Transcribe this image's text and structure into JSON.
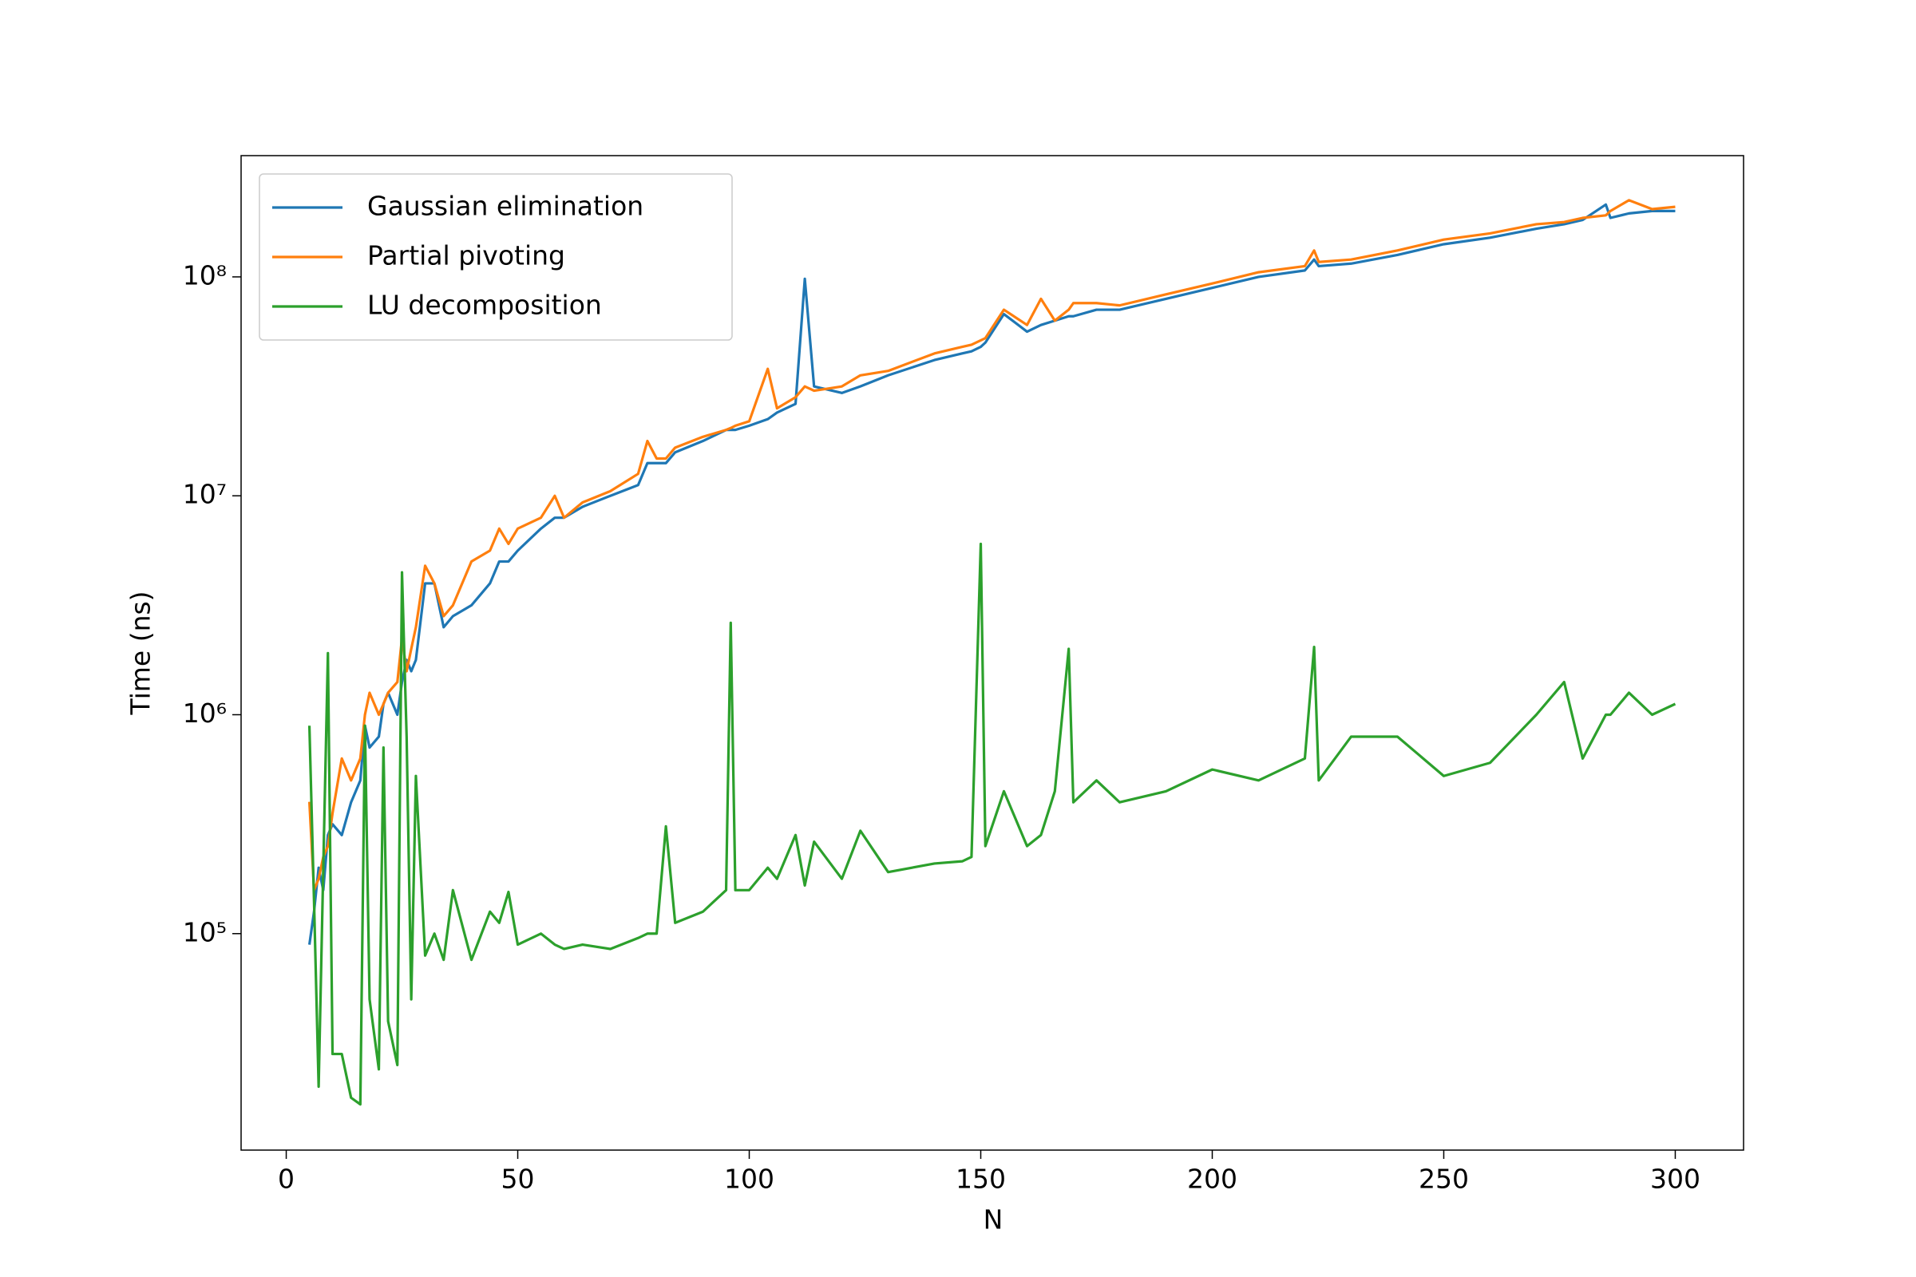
{
  "chart_data": {
    "type": "line",
    "x_label": "N",
    "y_label": "Time (ns)",
    "x": [
      5,
      6,
      7,
      8,
      9,
      10,
      12,
      14,
      16,
      17,
      18,
      20,
      21,
      22,
      24,
      25,
      26,
      27,
      28,
      30,
      32,
      34,
      36,
      40,
      44,
      46,
      48,
      50,
      55,
      58,
      60,
      64,
      70,
      76,
      78,
      80,
      82,
      84,
      90,
      95,
      96,
      97,
      100,
      104,
      106,
      110,
      112,
      114,
      120,
      124,
      130,
      140,
      146,
      148,
      150,
      151,
      155,
      160,
      163,
      166,
      169,
      170,
      175,
      180,
      190,
      200,
      210,
      220,
      222,
      223,
      230,
      240,
      250,
      260,
      270,
      276,
      280,
      285,
      286,
      290,
      295,
      300
    ],
    "series": [
      {
        "name": "Gaussian elimination",
        "color": "#1f77b4",
        "values": [
          89000,
          126000,
          200000,
          158000,
          282000,
          316000,
          282000,
          398000,
          501000,
          891000,
          708000,
          794000,
          1120000,
          1260000,
          1000000,
          1410000,
          1780000,
          1580000,
          1780000,
          3980000,
          3980000,
          2510000,
          2820000,
          3160000,
          3980000,
          5010000,
          5010000,
          5620000,
          7080000,
          7940000,
          7940000,
          8910000,
          10000000,
          11200000,
          14100000,
          14100000,
          14100000,
          15800000,
          17800000,
          20000000,
          20000000,
          20000000,
          20900000,
          22400000,
          24000000,
          26300000,
          98000000,
          31600000,
          29500000,
          31600000,
          35500000,
          41700000,
          44700000,
          45700000,
          47900000,
          50100000,
          67600000,
          56200000,
          60300000,
          63100000,
          66100000,
          66100000,
          70800000,
          70800000,
          79400000,
          89100000,
          100000000,
          107000000,
          120000000,
          112000000,
          115000000,
          126000000,
          141000000,
          151000000,
          166000000,
          174000000,
          182000000,
          214000000,
          186000000,
          195000000,
          200000000,
          200000000
        ]
      },
      {
        "name": "Partial pivoting",
        "color": "#ff7f0e",
        "values": [
          400000,
          158000,
          178000,
          224000,
          251000,
          355000,
          631000,
          501000,
          631000,
          1000000,
          1260000,
          1000000,
          1120000,
          1260000,
          1410000,
          2240000,
          1580000,
          2000000,
          2510000,
          4790000,
          3980000,
          2820000,
          3160000,
          5010000,
          5620000,
          7080000,
          6030000,
          7080000,
          7940000,
          10000000,
          7940000,
          9330000,
          10500000,
          12600000,
          17800000,
          14800000,
          14800000,
          16600000,
          18600000,
          20000000,
          20400000,
          20900000,
          21900000,
          38000000,
          25100000,
          28200000,
          31600000,
          30200000,
          31600000,
          35500000,
          37200000,
          44700000,
          47900000,
          49000000,
          51300000,
          52500000,
          70800000,
          60300000,
          79400000,
          63100000,
          70800000,
          75900000,
          75900000,
          74100000,
          83200000,
          93300000,
          105000000,
          112000000,
          132000000,
          117000000,
          120000000,
          132000000,
          148000000,
          158000000,
          174000000,
          178000000,
          186000000,
          191000000,
          200000000,
          224000000,
          204000000,
          209000000
        ]
      },
      {
        "name": "LU decomposition",
        "color": "#2ca02c",
        "values": [
          891000,
          141000,
          20000,
          200000,
          1910000,
          28200,
          28200,
          17800,
          16600,
          891000,
          50100,
          24000,
          708000,
          39800,
          25100,
          4470000,
          794000,
          50100,
          525000,
          79400,
          100000,
          75900,
          158000,
          75900,
          126000,
          112000,
          155000,
          89100,
          100000,
          89100,
          85100,
          89100,
          85100,
          95500,
          100000,
          100000,
          309000,
          112000,
          126000,
          158000,
          2630000,
          158000,
          158000,
          200000,
          178000,
          282000,
          166000,
          263000,
          178000,
          295000,
          191000,
          209000,
          214000,
          224000,
          6030000,
          251000,
          447000,
          251000,
          282000,
          447000,
          2000000,
          398000,
          501000,
          398000,
          447000,
          562000,
          501000,
          631000,
          2040000,
          501000,
          794000,
          794000,
          525000,
          603000,
          1000000,
          1410000,
          631000,
          1000000,
          1000000,
          1260000,
          1000000,
          1120000
        ]
      }
    ],
    "xlim": [
      -9.75,
      314.75
    ],
    "ylim": [
      10260,
      358000000
    ],
    "log_y": true,
    "xticks": [
      0,
      50,
      100,
      150,
      200,
      250,
      300
    ],
    "yticks": [
      {
        "value": 100000,
        "label": "10⁵"
      },
      {
        "value": 1000000,
        "label": "10⁶"
      },
      {
        "value": 10000000,
        "label": "10⁷"
      },
      {
        "value": 100000000,
        "label": "10⁸"
      }
    ],
    "grid": false,
    "legend_loc": "upper left"
  }
}
